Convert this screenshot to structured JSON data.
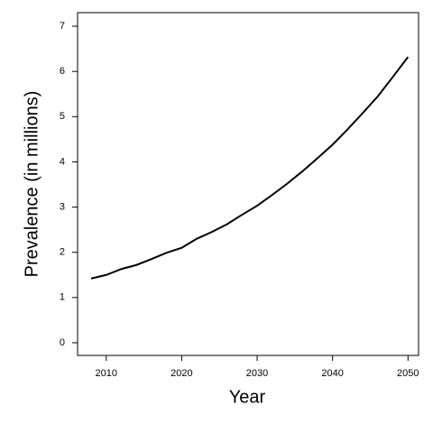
{
  "chart_data": {
    "type": "line",
    "x_label": "Year",
    "y_label": "Prevalence (in millions)",
    "x": [
      2008,
      2010,
      2012,
      2014,
      2016,
      2018,
      2020,
      2022,
      2024,
      2026,
      2028,
      2030,
      2032,
      2034,
      2036,
      2038,
      2040,
      2042,
      2044,
      2046,
      2048,
      2050
    ],
    "series": [
      {
        "color": "#000000",
        "values": [
          1.42,
          1.5,
          1.63,
          1.72,
          1.85,
          1.99,
          2.1,
          2.3,
          2.45,
          2.62,
          2.83,
          3.03,
          3.27,
          3.52,
          3.79,
          4.08,
          4.38,
          4.72,
          5.08,
          5.45,
          5.88,
          6.32
        ]
      }
    ],
    "xlim": [
      2006.2,
      2051.4
    ],
    "ylim": [
      -0.28,
      7.3
    ],
    "xticks": [
      2010,
      2020,
      2030,
      2040,
      2050
    ],
    "yticks": [
      0,
      1,
      2,
      3,
      4,
      5,
      6,
      7
    ]
  }
}
